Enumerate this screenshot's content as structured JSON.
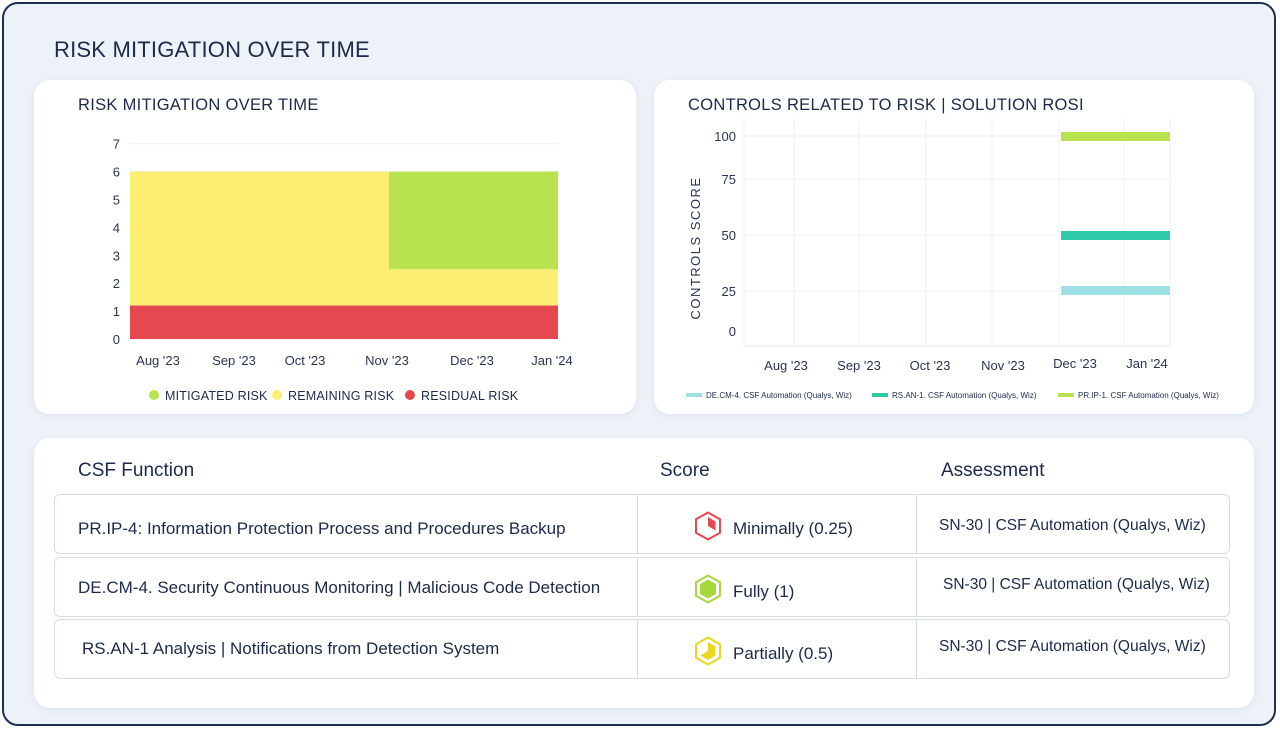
{
  "page_title": "RISK MITIGATION OVER TIME",
  "left_chart": {
    "title": "RISK MITIGATION OVER TIME",
    "y_ticks": [
      "0",
      "1",
      "2",
      "3",
      "4",
      "5",
      "6",
      "7"
    ],
    "x_ticks": [
      "Aug '23",
      "Sep '23",
      "Oct '23",
      "Nov '23",
      "Dec '23",
      "Jan '24"
    ],
    "legend": [
      {
        "label": "MITIGATED RISK",
        "color": "#b9e24f"
      },
      {
        "label": "REMAINING RISK",
        "color": "#fbee73"
      },
      {
        "label": "RESIDUAL RISK",
        "color": "#e5484f"
      }
    ]
  },
  "right_chart": {
    "title": "CONTROLS RELATED TO RISK | SOLUTION ROSI",
    "y_axis_label": "CONTROLS SCORE",
    "y_ticks": [
      "0",
      "25",
      "50",
      "75",
      "100"
    ],
    "x_ticks": [
      "Aug '23",
      "Sep '23",
      "Oct '23",
      "Nov '23",
      "Dec '23",
      "Jan '24"
    ],
    "legend": [
      {
        "label": "DE.CM-4. CSF Automation (Qualys, Wiz)",
        "color": "#9fdfe6"
      },
      {
        "label": "RS.AN-1. CSF Automation (Qualys, Wiz)",
        "color": "#2ec9a8"
      },
      {
        "label": "PR.IP-1. CSF Automation (Qualys, Wiz)",
        "color": "#b9e24f"
      }
    ]
  },
  "chart_data": [
    {
      "type": "area",
      "title": "RISK MITIGATION OVER TIME",
      "categories": [
        "Aug '23",
        "Sep '23",
        "Oct '23",
        "Nov '23",
        "Dec '23",
        "Jan '24"
      ],
      "ylim": [
        0,
        7
      ],
      "stacked": true,
      "series": [
        {
          "name": "RESIDUAL RISK",
          "color": "#e5484f",
          "values": [
            1.2,
            1.2,
            1.2,
            1.2,
            1.2,
            1.2
          ]
        },
        {
          "name": "REMAINING RISK",
          "color": "#fbee73",
          "values": [
            4.8,
            4.8,
            4.8,
            4.8,
            1.3,
            1.3
          ]
        },
        {
          "name": "MITIGATED RISK",
          "color": "#b9e24f",
          "values": [
            0,
            0,
            0,
            0,
            3.5,
            3.5
          ]
        }
      ],
      "change_point": "Nov '23"
    },
    {
      "type": "line",
      "title": "CONTROLS RELATED TO RISK | SOLUTION ROSI",
      "ylabel": "CONTROLS SCORE",
      "categories": [
        "Aug '23",
        "Sep '23",
        "Oct '23",
        "Nov '23",
        "Dec '23",
        "Jan '24"
      ],
      "ylim": [
        0,
        100
      ],
      "series": [
        {
          "name": "DE.CM-4. CSF Automation (Qualys, Wiz)",
          "color": "#9fdfe6",
          "values": [
            null,
            null,
            null,
            null,
            25,
            25
          ]
        },
        {
          "name": "RS.AN-1. CSF Automation (Qualys, Wiz)",
          "color": "#2ec9a8",
          "values": [
            null,
            null,
            null,
            null,
            50,
            50
          ]
        },
        {
          "name": "PR.IP-1. CSF Automation (Qualys, Wiz)",
          "color": "#b9e24f",
          "values": [
            null,
            null,
            null,
            null,
            100,
            100
          ]
        }
      ]
    }
  ],
  "table": {
    "headers": {
      "function": "CSF Function",
      "score": "Score",
      "assessment": "Assessment"
    },
    "rows": [
      {
        "function": "PR.IP-4: Information Protection Process and Procedures Backup",
        "score": "Minimally (0.25)",
        "level": 0.25,
        "icon": "hexagon-quarter-icon",
        "color": "#e5484f",
        "assessment": "SN-30 | CSF Automation (Qualys, Wiz)"
      },
      {
        "function": "DE.CM-4. Security Continuous Monitoring | Malicious Code Detection",
        "score": "Fully (1)",
        "level": 1,
        "icon": "hexagon-full-icon",
        "color": "#a6d83c",
        "assessment": "SN-30 | CSF Automation (Qualys, Wiz)"
      },
      {
        "function": "RS.AN-1 Analysis | Notifications from Detection System",
        "score": "Partially (0.5)",
        "level": 0.5,
        "icon": "hexagon-half-icon",
        "color": "#ecd61c",
        "assessment": "SN-30 | CSF Automation (Qualys, Wiz)"
      }
    ]
  }
}
